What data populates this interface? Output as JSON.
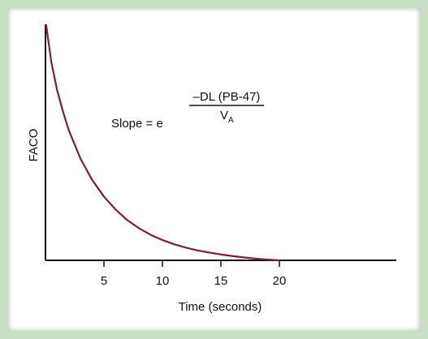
{
  "colors": {
    "frame": "#c9dfc6",
    "panel": "#ffffff",
    "axis": "#111111",
    "curve": "#7d1d3f"
  },
  "chart_data": {
    "type": "line",
    "title": "",
    "xlabel": "Time (seconds)",
    "ylabel": "FACO",
    "xlim": [
      0,
      30
    ],
    "ylim": [
      0,
      1
    ],
    "x_ticks": [
      5,
      10,
      15,
      20
    ],
    "x_tick_labels": [
      "5",
      "10",
      "15",
      "20"
    ],
    "y_ticks": [],
    "grid": false,
    "series": [
      {
        "x": [
          0.05,
          0.5,
          1,
          1.5,
          2,
          3,
          4,
          5,
          6,
          7,
          8,
          9,
          10,
          11,
          12,
          13,
          14,
          15,
          16,
          17,
          18,
          19,
          20
        ],
        "y": [
          1.0,
          0.84,
          0.72,
          0.63,
          0.55,
          0.43,
          0.34,
          0.27,
          0.215,
          0.17,
          0.136,
          0.108,
          0.086,
          0.068,
          0.054,
          0.042,
          0.033,
          0.025,
          0.018,
          0.012,
          0.007,
          0.003,
          0.0
        ]
      }
    ],
    "annotation": {
      "lhs": "Slope = e",
      "numerator": "–DL (PB-47)",
      "denominator_main": "V",
      "denominator_sub": "A"
    }
  }
}
